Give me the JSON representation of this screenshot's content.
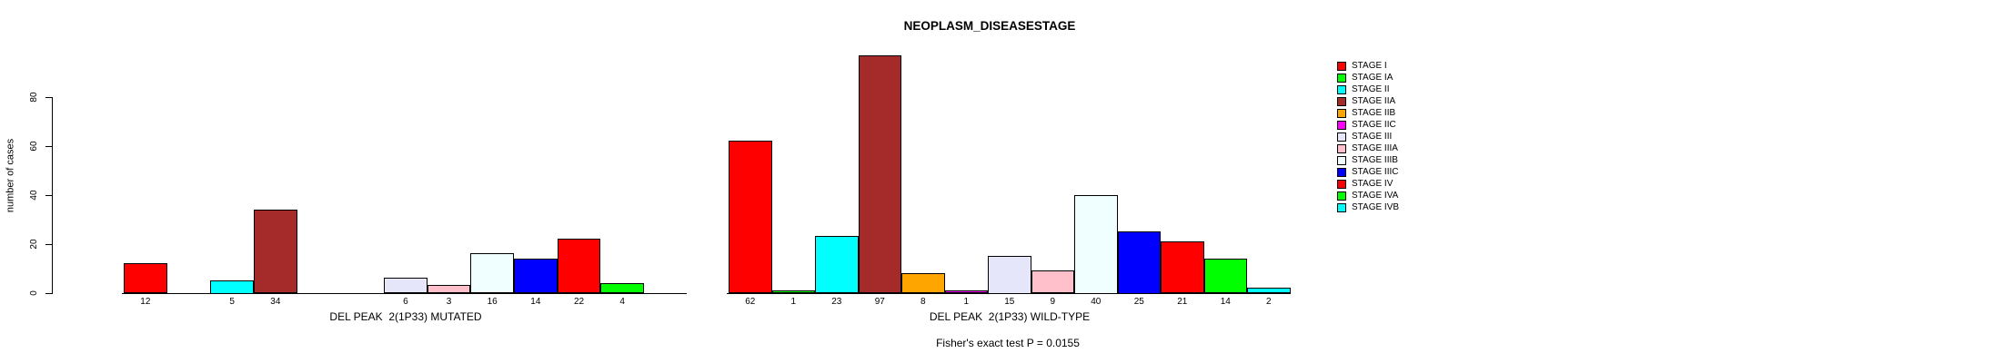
{
  "title": "NEOPLASM_DISEASESTAGE",
  "footer": "Fisher's exact test P = 0.0155",
  "y_axis": {
    "label": "number of cases",
    "ticks": [
      0,
      20,
      40,
      60,
      80
    ]
  },
  "stages": [
    {
      "name": "STAGE I",
      "color": "#FF0000"
    },
    {
      "name": "STAGE IA",
      "color": "#00FF00"
    },
    {
      "name": "STAGE II",
      "color": "#00FFFF"
    },
    {
      "name": "STAGE IIA",
      "color": "#A52A2A"
    },
    {
      "name": "STAGE IIB",
      "color": "#FFA500"
    },
    {
      "name": "STAGE IIC",
      "color": "#FF00FF"
    },
    {
      "name": "STAGE III",
      "color": "#E6E6FA"
    },
    {
      "name": "STAGE IIIA",
      "color": "#FFC0CB"
    },
    {
      "name": "STAGE IIIB",
      "color": "#F0FFFF"
    },
    {
      "name": "STAGE IIIC",
      "color": "#0000FF"
    },
    {
      "name": "STAGE IV",
      "color": "#FF0000"
    },
    {
      "name": "STAGE IVA",
      "color": "#00FF00"
    },
    {
      "name": "STAGE IVB",
      "color": "#00FFFF"
    }
  ],
  "legend": {
    "position": "right",
    "items": [
      "STAGE I",
      "STAGE IA",
      "STAGE II",
      "STAGE IIA",
      "STAGE IIB",
      "STAGE IIC",
      "STAGE III",
      "STAGE IIIA",
      "STAGE IIIB",
      "STAGE IIIC",
      "STAGE IV",
      "STAGE IVA",
      "STAGE IVB"
    ]
  },
  "chart_data": [
    {
      "type": "bar",
      "xlabel": "DEL PEAK  2(1P33) MUTATED",
      "categories": [
        "STAGE I",
        "STAGE IA",
        "STAGE II",
        "STAGE IIA",
        "STAGE IIB",
        "STAGE IIC",
        "STAGE III",
        "STAGE IIIA",
        "STAGE IIIB",
        "STAGE IIIC",
        "STAGE IV",
        "STAGE IVA",
        "STAGE IVB"
      ],
      "values": [
        12,
        null,
        5,
        34,
        null,
        null,
        6,
        3,
        16,
        14,
        22,
        4,
        null
      ],
      "bar_labels": [
        "12",
        null,
        "5",
        "34",
        null,
        null,
        "6",
        "3",
        "16",
        "14",
        "22",
        "4",
        null
      ],
      "ylim": [
        0,
        80
      ],
      "grid": false
    },
    {
      "type": "bar",
      "xlabel": "DEL PEAK  2(1P33) WILD-TYPE",
      "categories": [
        "STAGE I",
        "STAGE IA",
        "STAGE II",
        "STAGE IIA",
        "STAGE IIB",
        "STAGE IIC",
        "STAGE III",
        "STAGE IIIA",
        "STAGE IIIB",
        "STAGE IIIC",
        "STAGE IV",
        "STAGE IVA",
        "STAGE IVB"
      ],
      "values": [
        62,
        1,
        23,
        97,
        8,
        1,
        15,
        9,
        40,
        25,
        21,
        14,
        2
      ],
      "bar_labels": [
        "62",
        "1",
        "23",
        "97",
        "8",
        "1",
        "15",
        "9",
        "40",
        "25",
        "21",
        "14",
        "2"
      ],
      "ylim": [
        0,
        80
      ],
      "grid": false
    }
  ]
}
